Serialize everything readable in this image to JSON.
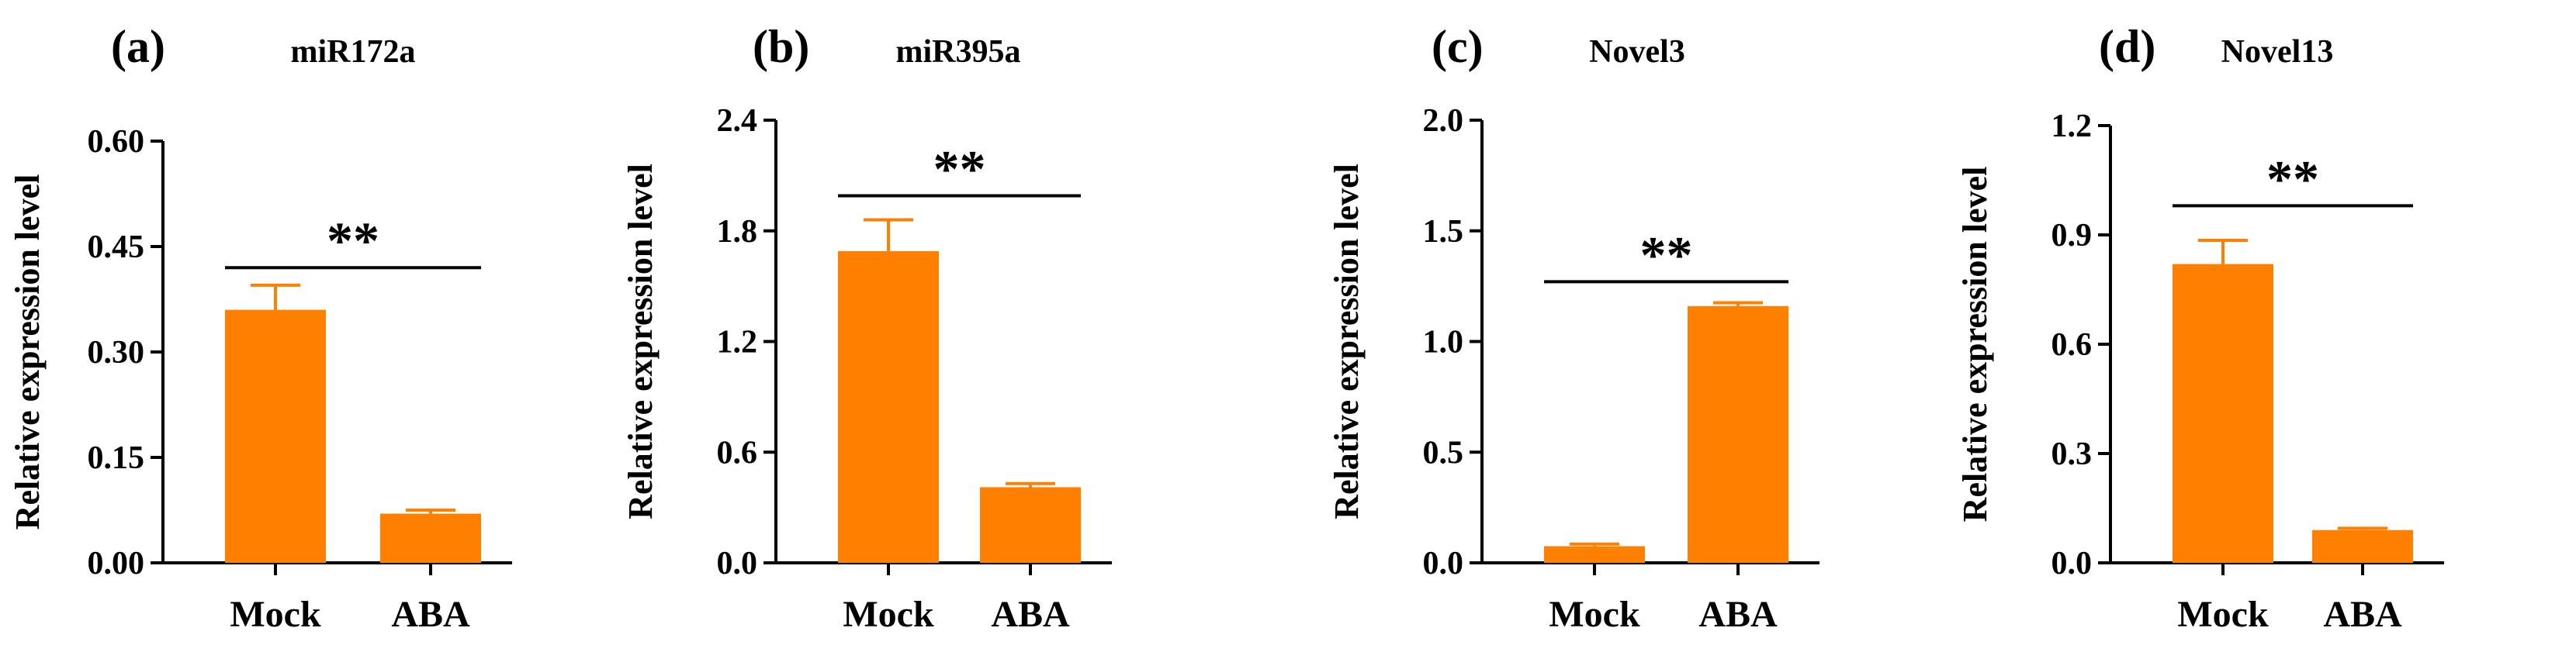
{
  "figure": {
    "bar_color": "#FF8000",
    "axis_color": "#000000"
  },
  "chart_data": [
    {
      "type": "bar",
      "panel_label": "(a)",
      "title": "miR172a",
      "xlabel": "",
      "ylabel": "Relative expression level",
      "categories": [
        "Mock",
        "ABA"
      ],
      "values": [
        0.36,
        0.07
      ],
      "errors": [
        0.035,
        0.005
      ],
      "ylim": [
        0,
        0.6
      ],
      "yticks": [
        0.0,
        0.15,
        0.3,
        0.45,
        0.6
      ],
      "ytick_labels": [
        "0.00",
        "0.15",
        "0.30",
        "0.45",
        "0.60"
      ],
      "significance": {
        "label": "**",
        "y": 0.42
      }
    },
    {
      "type": "bar",
      "panel_label": "(b)",
      "title": "miR395a",
      "xlabel": "",
      "ylabel": "Relative expression level",
      "categories": [
        "Mock",
        "ABA"
      ],
      "values": [
        1.69,
        0.41
      ],
      "errors": [
        0.17,
        0.02
      ],
      "ylim": [
        0,
        2.4
      ],
      "yticks": [
        0.0,
        0.6,
        1.2,
        1.8,
        2.4
      ],
      "ytick_labels": [
        "0.0",
        "0.6",
        "1.2",
        "1.8",
        "2.4"
      ],
      "significance": {
        "label": "**",
        "y": 1.99
      }
    },
    {
      "type": "bar",
      "panel_label": "(c)",
      "title": "Novel3",
      "xlabel": "",
      "ylabel": "Relative expression level",
      "categories": [
        "Mock",
        "ABA"
      ],
      "values": [
        0.075,
        1.16
      ],
      "errors": [
        0.01,
        0.015
      ],
      "ylim": [
        0,
        2.0
      ],
      "yticks": [
        0.0,
        0.5,
        1.0,
        1.5,
        2.0
      ],
      "ytick_labels": [
        "0.0",
        "0.5",
        "1.0",
        "1.5",
        "2.0"
      ],
      "significance": {
        "label": "**",
        "y": 1.27
      }
    },
    {
      "type": "bar",
      "panel_label": "(d)",
      "title": "Novel13",
      "xlabel": "",
      "ylabel": "Relative expression level",
      "categories": [
        "Mock",
        "ABA"
      ],
      "values": [
        0.82,
        0.09
      ],
      "errors": [
        0.065,
        0.005
      ],
      "ylim": [
        0,
        1.2
      ],
      "yticks": [
        0.0,
        0.3,
        0.6,
        0.9,
        1.2
      ],
      "ytick_labels": [
        "0.0",
        "0.3",
        "0.6",
        "0.9",
        "1.2"
      ],
      "significance": {
        "label": "**",
        "y": 0.98
      }
    }
  ]
}
